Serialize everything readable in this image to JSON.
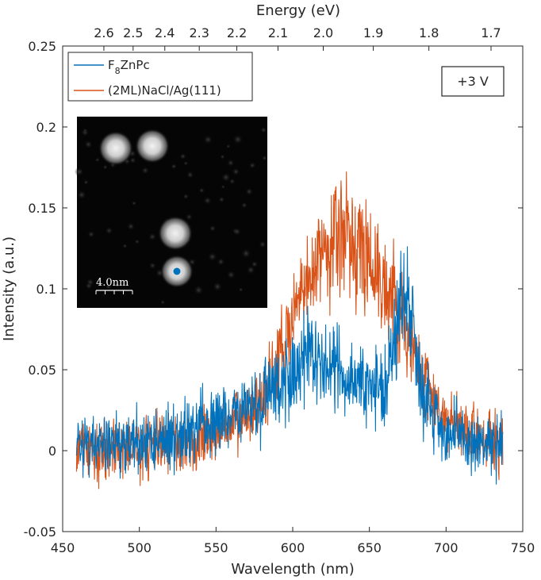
{
  "chart_data": {
    "type": "line",
    "xlabel": "Wavelength (nm)",
    "ylabel": "Intensity (a.u.)",
    "top_axis_label": "Energy (eV)",
    "xlim": [
      450,
      750
    ],
    "ylim": [
      -0.05,
      0.25
    ],
    "x_ticks": [
      450,
      500,
      550,
      600,
      650,
      700,
      750
    ],
    "y_ticks": [
      -0.05,
      0,
      0.05,
      0.1,
      0.15,
      0.2,
      0.25
    ],
    "x_tick_labels": [
      "450",
      "500",
      "550",
      "600",
      "650",
      "700",
      "750"
    ],
    "y_tick_labels": [
      "-0.05",
      "0",
      "0.05",
      "0.1",
      "0.15",
      "0.2",
      "0.25"
    ],
    "top_ticks_ev": [
      2.6,
      2.5,
      2.4,
      2.3,
      2.2,
      2.1,
      2.0,
      1.9,
      1.8,
      1.7
    ],
    "top_tick_labels": [
      "2.6",
      "2.5",
      "2.4",
      "2.3",
      "2.2",
      "2.1",
      "2.0",
      "1.9",
      "1.8",
      "1.7"
    ],
    "grid": false,
    "legend_position": "top-left",
    "annotation": "+3 V",
    "series": [
      {
        "name_main": "F",
        "name_sub": "8",
        "name_rest": "ZnPc",
        "color": "#0072BD",
        "noise_amplitude": 0.012,
        "x": [
          459,
          475,
          500,
          525,
          550,
          570,
          590,
          600,
          610,
          620,
          630,
          640,
          650,
          655,
          660,
          665,
          670,
          675,
          678,
          685,
          700,
          720,
          737
        ],
        "y": [
          0.003,
          0.003,
          0.005,
          0.01,
          0.016,
          0.026,
          0.04,
          0.05,
          0.056,
          0.052,
          0.05,
          0.046,
          0.038,
          0.036,
          0.042,
          0.058,
          0.09,
          0.1,
          0.08,
          0.036,
          0.01,
          0.004,
          0.002
        ]
      },
      {
        "name_main": "(2ML)NaCl/Ag(111)",
        "name_sub": "",
        "name_rest": "",
        "color": "#D95319",
        "noise_amplitude": 0.011,
        "x": [
          459,
          475,
          500,
          525,
          550,
          570,
          585,
          600,
          610,
          620,
          630,
          640,
          650,
          660,
          670,
          680,
          690,
          700,
          710,
          720,
          730,
          737
        ],
        "y": [
          0.002,
          0.002,
          0.003,
          0.005,
          0.01,
          0.02,
          0.04,
          0.08,
          0.105,
          0.125,
          0.135,
          0.13,
          0.118,
          0.105,
          0.085,
          0.055,
          0.035,
          0.02,
          0.012,
          0.008,
          0.004,
          0.002
        ]
      }
    ],
    "inset": {
      "scale_bar_label": "4.0nm",
      "marker_color": "#0072BD"
    }
  }
}
